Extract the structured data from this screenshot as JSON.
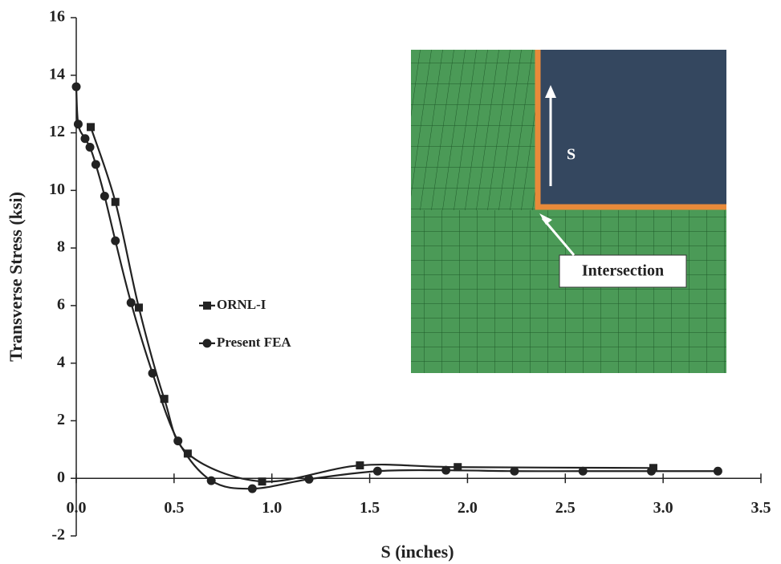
{
  "chart_data": {
    "type": "line",
    "xlabel": "S (inches)",
    "ylabel": "Transverse Stress (ksi)",
    "xlim": [
      0,
      3.5
    ],
    "ylim": [
      -2,
      16
    ],
    "xticks": [
      {
        "value": 0,
        "label": "0.0"
      },
      0.5,
      {
        "value": 1,
        "label": "1.0"
      },
      1.5,
      {
        "value": 2,
        "label": "2.0"
      },
      2.5,
      {
        "value": 3,
        "label": "3.0"
      },
      3.5
    ],
    "yticks": [
      -2,
      0,
      2,
      4,
      6,
      8,
      10,
      12,
      14,
      16
    ],
    "grid": false,
    "legend": "center-left",
    "series": [
      {
        "name": "ORNL-I",
        "color": "#222222",
        "marker": "square",
        "x": [
          0.074,
          0.2,
          0.32,
          0.45,
          0.57,
          0.95,
          1.45,
          1.95,
          2.95
        ],
        "values": [
          12.2,
          9.6,
          5.93,
          2.76,
          0.86,
          -0.11,
          0.45,
          0.39,
          0.36
        ]
      },
      {
        "name": "Present FEA",
        "color": "#222222",
        "marker": "circle",
        "x": [
          0,
          0.01,
          0.045,
          0.07,
          0.1,
          0.145,
          0.2,
          0.28,
          0.39,
          0.52,
          0.69,
          0.9,
          1.19,
          1.54,
          1.89,
          2.24,
          2.59,
          2.94,
          3.28
        ],
        "values": [
          13.6,
          12.3,
          11.8,
          11.5,
          10.9,
          9.8,
          8.25,
          6.1,
          3.65,
          1.3,
          -0.08,
          -0.36,
          -0.03,
          0.25,
          0.28,
          0.25,
          0.25,
          0.25,
          0.25
        ]
      }
    ],
    "inset_labels": [
      "S",
      "Intersection"
    ]
  }
}
